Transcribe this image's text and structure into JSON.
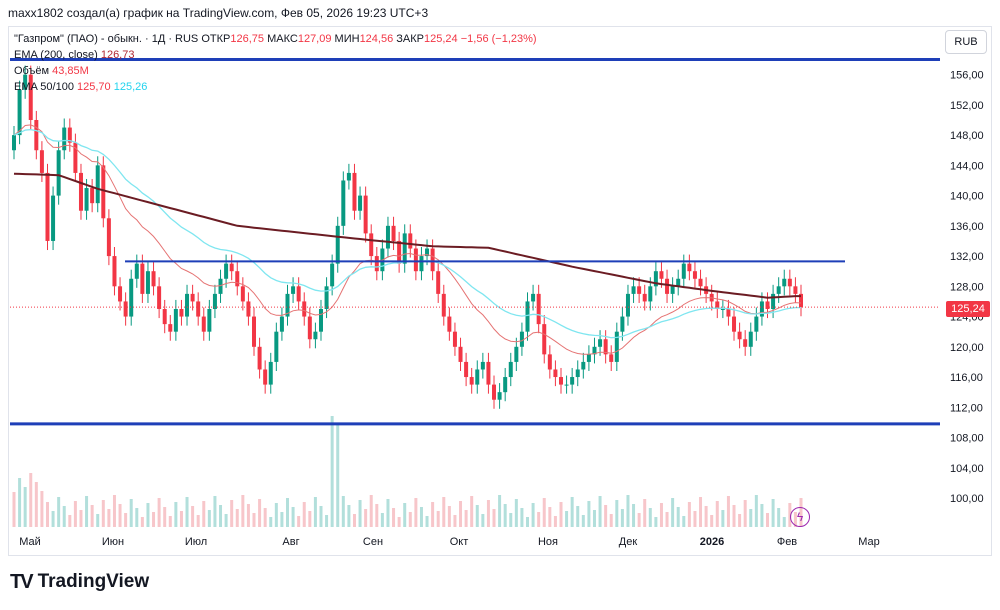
{
  "header": {
    "attribution": "maxx1802 создал(а) график на TradingView.com, Фев 05, 2026 19:23 UTC+3"
  },
  "legend": {
    "symbol": "\"Газпром\" (ПАО) - обыкн. · 1Д · RUS",
    "open_label": "ОТКР",
    "open": "126,75",
    "high_label": "МАКС",
    "high": "127,09",
    "low_label": "МИН",
    "low": "124,56",
    "close_label": "ЗАКР",
    "close": "125,24",
    "change": "−1,56 (−1,23%)",
    "ema200_label": "EMA (200, close)",
    "ema200_value": "126,73",
    "volume_label": "Объём",
    "volume_value": "43,85M",
    "ema50_100_label": "EMA 50/100",
    "ema50_value": "125,70",
    "ema100_value": "125,26"
  },
  "currency_button": "RUB",
  "last_price_tag": "125,24",
  "logo_text": "TradingView",
  "colors": {
    "up": "#089981",
    "down": "#f23645",
    "ema200": "#6b1c23",
    "ema50": "#e57373",
    "ema100": "#7fe6f0",
    "hline": "#1e3fb8"
  },
  "chart_data": {
    "type": "candlestick",
    "y_range": [
      96,
      159
    ],
    "y_ticks": [
      100,
      104,
      108,
      112,
      116,
      120,
      124,
      128,
      132,
      136,
      140,
      144,
      148,
      152,
      156
    ],
    "y_tick_labels": [
      "100,00",
      "104,00",
      "108,00",
      "112,00",
      "116,00",
      "120,00",
      "124,00",
      "128,00",
      "132,00",
      "136,00",
      "140,00",
      "144,00",
      "148,00",
      "152,00",
      "156,00"
    ],
    "x_labels": [
      "Май",
      "Июн",
      "Июл",
      "Авг",
      "Сен",
      "Окт",
      "Ноя",
      "Дек",
      "2026",
      "Фев",
      "Мар"
    ],
    "horizontal_lines": [
      158,
      131.3,
      109.8
    ],
    "close_series": [
      148,
      154,
      156,
      150,
      146,
      143,
      134,
      140,
      146,
      149,
      147,
      143,
      138,
      141,
      139,
      144,
      137,
      132,
      128,
      126,
      124,
      129,
      131,
      127,
      130,
      128,
      125,
      123,
      122,
      125,
      124,
      127,
      126,
      124,
      122,
      125,
      127,
      129,
      131,
      130,
      128,
      126,
      124,
      120,
      117,
      115,
      118,
      122,
      124,
      127,
      128,
      126,
      124,
      121,
      122,
      125,
      128,
      131,
      136,
      142,
      143,
      138,
      140,
      135,
      132,
      130,
      133,
      136,
      134,
      131,
      135,
      133,
      130,
      132,
      133,
      130,
      127,
      124,
      122,
      120,
      118,
      116,
      115,
      117,
      118,
      115,
      113,
      114,
      116,
      118,
      120,
      122,
      126,
      127,
      123,
      119,
      117,
      116,
      115,
      115,
      116,
      117,
      118,
      119,
      120,
      121,
      119,
      118,
      122,
      124,
      127,
      128,
      127,
      126,
      128,
      130,
      129,
      127,
      128,
      129,
      131,
      130,
      129,
      128,
      127,
      126,
      125,
      125,
      124,
      122,
      121,
      120,
      122,
      124,
      126,
      125,
      127,
      128,
      129,
      128,
      127,
      125.24
    ],
    "ema200_values_at": [
      [
        0,
        142.9
      ],
      [
        8,
        142.7
      ],
      [
        15,
        140.9
      ],
      [
        40,
        136.0
      ],
      [
        60,
        134.4
      ],
      [
        75,
        133.3
      ],
      [
        85,
        133.1
      ],
      [
        100,
        130.6
      ],
      [
        115,
        128.4
      ],
      [
        125,
        127.4
      ],
      [
        135,
        126.5
      ],
      [
        140,
        126.7
      ]
    ],
    "ema100_final": 125.26,
    "ema50_final": 125.7
  }
}
